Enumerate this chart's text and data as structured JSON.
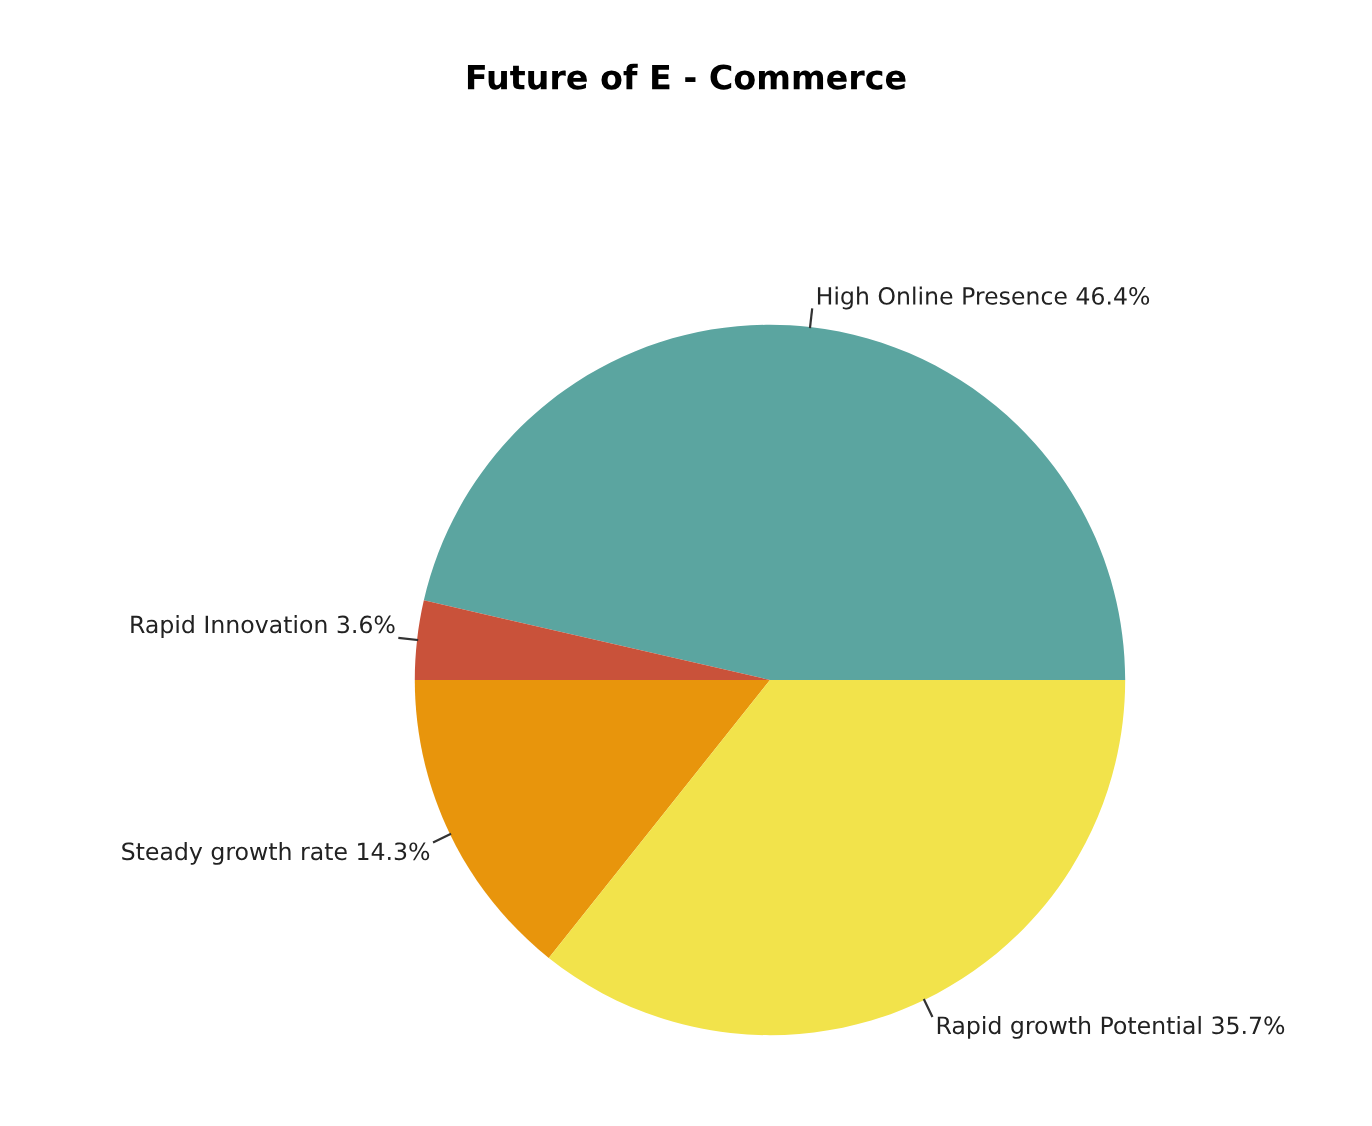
{
  "chart_data": {
    "type": "pie",
    "title": "Future of E - Commerce",
    "categories": [
      "High Online Presence",
      "Rapid Innovation",
      "Steady growth rate",
      "Rapid growth Potential"
    ],
    "values": [
      46.4,
      3.6,
      14.3,
      35.7
    ],
    "value_labels": [
      "46.4%",
      "3.6%",
      "14.3%",
      "35.7%"
    ],
    "colors": [
      "#5ba5a0",
      "#c9523a",
      "#e8950c",
      "#f2e34b"
    ],
    "legend": false
  }
}
